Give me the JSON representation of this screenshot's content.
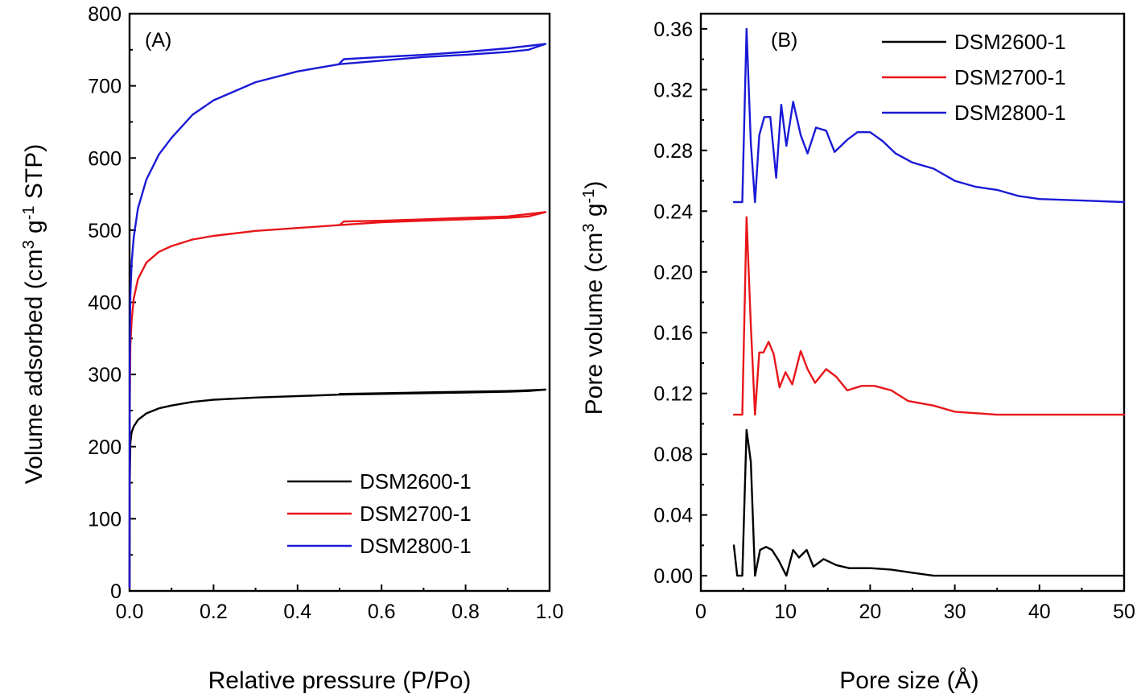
{
  "chart_data": [
    {
      "type": "line",
      "panel_label": "(A)",
      "xlabel": "Relative pressure (P/Po)",
      "ylabel": "Volume adsorbed (cm^3 g^-1 STP)",
      "xlim": [
        0.0,
        1.0
      ],
      "ylim": [
        0,
        800
      ],
      "xticks": [
        0.0,
        0.2,
        0.4,
        0.6,
        0.8,
        1.0
      ],
      "xtick_labels": [
        "0.0",
        "0.2",
        "0.4",
        "0.6",
        "0.8",
        "1.0"
      ],
      "yticks": [
        0,
        100,
        200,
        300,
        400,
        500,
        600,
        700,
        800
      ],
      "ytick_labels": [
        "0",
        "100",
        "200",
        "300",
        "400",
        "500",
        "600",
        "700",
        "800"
      ],
      "legend_position": "bottom-right",
      "series": [
        {
          "name": "DSM2600-1",
          "color": "#000000",
          "x": [
            0.0,
            0.0005,
            0.002,
            0.005,
            0.01,
            0.02,
            0.04,
            0.07,
            0.1,
            0.15,
            0.2,
            0.3,
            0.4,
            0.5,
            0.6,
            0.7,
            0.8,
            0.9,
            0.95,
            0.99
          ],
          "y": [
            5,
            150,
            205,
            220,
            228,
            237,
            246,
            253,
            257,
            262,
            265,
            268,
            270,
            272,
            273,
            274,
            275,
            276,
            277,
            279
          ],
          "desorption_x": [
            0.99,
            0.9,
            0.8,
            0.7,
            0.6,
            0.5
          ],
          "desorption_y": [
            279,
            277,
            276,
            275,
            274,
            273
          ]
        },
        {
          "name": "DSM2700-1",
          "color": "#e8161b",
          "x": [
            0.0,
            0.0005,
            0.002,
            0.005,
            0.01,
            0.02,
            0.04,
            0.07,
            0.1,
            0.15,
            0.2,
            0.3,
            0.4,
            0.5,
            0.6,
            0.7,
            0.8,
            0.9,
            0.95,
            0.99
          ],
          "y": [
            5,
            250,
            340,
            375,
            405,
            432,
            455,
            470,
            478,
            487,
            492,
            499,
            503,
            507,
            511,
            513,
            515,
            517,
            519,
            525
          ],
          "desorption_x": [
            0.99,
            0.9,
            0.8,
            0.7,
            0.6,
            0.51,
            0.5
          ],
          "desorption_y": [
            525,
            519,
            517,
            515,
            513,
            512,
            507
          ]
        },
        {
          "name": "DSM2800-1",
          "color": "#1a1ad6",
          "x": [
            0.0,
            0.0005,
            0.002,
            0.005,
            0.01,
            0.02,
            0.04,
            0.07,
            0.1,
            0.15,
            0.2,
            0.3,
            0.4,
            0.5,
            0.6,
            0.7,
            0.8,
            0.9,
            0.95,
            0.99
          ],
          "y": [
            5,
            330,
            410,
            455,
            490,
            530,
            570,
            605,
            628,
            660,
            680,
            705,
            720,
            730,
            735,
            740,
            743,
            747,
            750,
            758
          ],
          "desorption_x": [
            0.99,
            0.9,
            0.8,
            0.7,
            0.6,
            0.51,
            0.5
          ],
          "desorption_y": [
            758,
            752,
            747,
            743,
            740,
            737,
            731
          ]
        }
      ]
    },
    {
      "type": "line",
      "panel_label": "(B)",
      "xlabel": "Pore size (Å)",
      "ylabel": "Pore volume (cm^3 g^-1)",
      "xlim": [
        0,
        50
      ],
      "ylim": [
        -0.01,
        0.37
      ],
      "xticks": [
        0,
        10,
        20,
        30,
        40,
        50
      ],
      "xtick_labels": [
        "0",
        "10",
        "20",
        "30",
        "40",
        "50"
      ],
      "yticks": [
        0.0,
        0.04,
        0.08,
        0.12,
        0.16,
        0.2,
        0.24,
        0.28,
        0.32,
        0.36
      ],
      "ytick_labels": [
        "0.00",
        "0.04",
        "0.08",
        "0.12",
        "0.16",
        "0.20",
        "0.24",
        "0.28",
        "0.32",
        "0.36"
      ],
      "legend_position": "top-right",
      "series": [
        {
          "name": "DSM2600-1",
          "color": "#000000",
          "x": [
            3.9,
            4.3,
            4.9,
            5.4,
            5.9,
            6.4,
            7.0,
            7.7,
            8.4,
            9.2,
            10.1,
            10.9,
            11.6,
            12.5,
            13.3,
            14.5,
            16.0,
            17.5,
            20.0,
            22.5,
            25.0,
            27.5,
            30,
            35,
            40,
            45,
            50
          ],
          "y": [
            0.02,
            0.0,
            0.0,
            0.096,
            0.075,
            0.0,
            0.017,
            0.019,
            0.017,
            0.01,
            0.0,
            0.017,
            0.012,
            0.017,
            0.006,
            0.011,
            0.007,
            0.005,
            0.005,
            0.004,
            0.002,
            0.0,
            0.0,
            0.0,
            0.0,
            0.0,
            0.0
          ]
        },
        {
          "name": "DSM2700-1",
          "color": "#e8161b",
          "x": [
            3.9,
            4.9,
            5.4,
            5.9,
            6.4,
            6.9,
            7.4,
            8.0,
            8.6,
            9.3,
            10.0,
            10.8,
            11.8,
            12.6,
            13.5,
            14.8,
            16.0,
            17.3,
            19.0,
            20.5,
            22.5,
            24.5,
            27.5,
            30,
            35,
            40,
            45,
            50
          ],
          "y": [
            0.106,
            0.106,
            0.236,
            0.165,
            0.106,
            0.147,
            0.147,
            0.154,
            0.146,
            0.124,
            0.134,
            0.126,
            0.148,
            0.136,
            0.127,
            0.136,
            0.131,
            0.122,
            0.125,
            0.125,
            0.122,
            0.115,
            0.112,
            0.108,
            0.106,
            0.106,
            0.106,
            0.106
          ]
        },
        {
          "name": "DSM2800-1",
          "color": "#1a1ad6",
          "x": [
            3.9,
            4.9,
            5.4,
            5.9,
            6.4,
            6.9,
            7.5,
            8.2,
            8.9,
            9.5,
            10.1,
            10.9,
            11.8,
            12.6,
            13.6,
            14.8,
            15.8,
            17.3,
            18.5,
            20.0,
            21.5,
            23.0,
            25.0,
            27.5,
            30,
            32.5,
            35,
            37.5,
            40,
            45,
            50
          ],
          "y": [
            0.246,
            0.246,
            0.36,
            0.285,
            0.246,
            0.29,
            0.302,
            0.302,
            0.262,
            0.31,
            0.283,
            0.312,
            0.29,
            0.278,
            0.295,
            0.293,
            0.279,
            0.287,
            0.292,
            0.292,
            0.286,
            0.278,
            0.272,
            0.268,
            0.26,
            0.256,
            0.254,
            0.25,
            0.248,
            0.247,
            0.246
          ]
        }
      ]
    }
  ]
}
